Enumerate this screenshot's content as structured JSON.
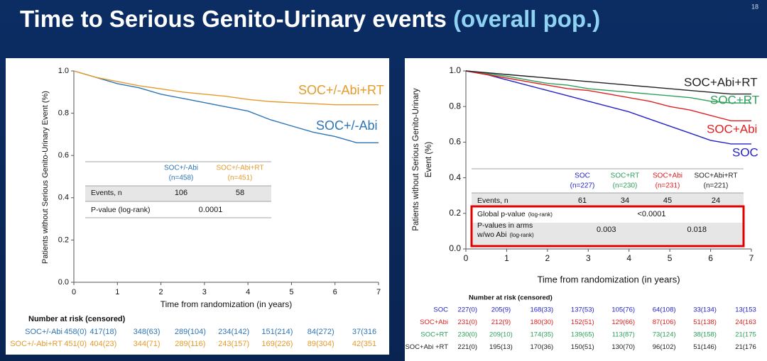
{
  "slide": {
    "title": "Time to Serious Genito-Urinary events",
    "title_highlight": "(overall pop.)",
    "page_number": 18
  },
  "chart_data": [
    {
      "type": "line",
      "x_label": "Time from randomization (in years)",
      "y_label": "Patients without Serious Genito-Urinary Event (%)",
      "x": [
        0,
        0.5,
        1,
        1.5,
        2,
        2.5,
        3,
        3.5,
        4,
        4.5,
        5,
        5.5,
        6,
        6.5,
        7
      ],
      "series": [
        {
          "name": "SOC+/-Abi",
          "color": "#2e75b6",
          "values": [
            1,
            0.97,
            0.94,
            0.92,
            0.89,
            0.87,
            0.85,
            0.83,
            0.81,
            0.77,
            0.74,
            0.71,
            0.69,
            0.66,
            0.66
          ]
        },
        {
          "name": "SOC+/-Abi+RT",
          "color": "#e59b2b",
          "values": [
            1,
            0.97,
            0.95,
            0.93,
            0.915,
            0.9,
            0.89,
            0.88,
            0.865,
            0.855,
            0.85,
            0.845,
            0.84,
            0.84,
            0.84
          ]
        }
      ],
      "xlim": [
        0,
        7
      ],
      "xticks": [
        0,
        1,
        2,
        3,
        4,
        5,
        6,
        7
      ],
      "ylim": [
        0,
        1
      ],
      "yticks": [
        {
          "value": 0,
          "label": "0.0"
        },
        0.2,
        0.4,
        0.6,
        0.8,
        {
          "value": 1,
          "label": "1.0"
        }
      ],
      "table": {
        "columns": [
          {
            "name": "SOC+/-Abi",
            "n": "(n=458)"
          },
          {
            "name": "SOC+/-Abi+RT",
            "n": "(n=451)"
          }
        ],
        "rows": [
          {
            "label": "Events, n",
            "cells": [
              106,
              58
            ]
          },
          {
            "label": "P-value (log-rank)",
            "cells": [
              "0.0001"
            ]
          }
        ]
      },
      "risk_table": {
        "title": "Number at risk (censored)",
        "rows": [
          {
            "name": "SOC+/-Abi",
            "cells": [
              "458(0)",
              "417(18)",
              "348(63)",
              "289(104)",
              "234(142)",
              "151(214)",
              "84(272)",
              "37(316"
            ]
          },
          {
            "name": "SOC+/-Abi+RT",
            "cells": [
              "451(0)",
              "404(23)",
              "344(71)",
              "289(116)",
              "243(157)",
              "169(226)",
              "89(304)",
              "42(351"
            ]
          }
        ]
      }
    },
    {
      "type": "line",
      "x_label": "Time from randomization (in years)",
      "y_label": [
        "Patients without Serious Genito-Urinary",
        "Event (%)"
      ],
      "x": [
        0,
        0.5,
        1,
        1.5,
        2,
        2.5,
        3,
        3.5,
        4,
        4.5,
        5,
        5.5,
        6,
        6.5,
        7
      ],
      "series": [
        {
          "name": "SOC",
          "color": "#2323c8",
          "values": [
            1,
            0.98,
            0.95,
            0.92,
            0.89,
            0.86,
            0.83,
            0.8,
            0.77,
            0.73,
            0.69,
            0.65,
            0.61,
            0.59,
            0.59
          ]
        },
        {
          "name": "SOC+RT",
          "color": "#2ea05a",
          "values": [
            1,
            0.985,
            0.97,
            0.95,
            0.93,
            0.92,
            0.9,
            0.89,
            0.88,
            0.87,
            0.86,
            0.85,
            0.83,
            0.82,
            0.82
          ]
        },
        {
          "name": "SOC+Abi",
          "color": "#e02020",
          "values": [
            1,
            0.98,
            0.96,
            0.94,
            0.92,
            0.9,
            0.89,
            0.87,
            0.85,
            0.83,
            0.8,
            0.78,
            0.75,
            0.72,
            0.72
          ]
        },
        {
          "name": "SOC+Abi+RT",
          "color": "#222222",
          "values": [
            1,
            0.99,
            0.98,
            0.97,
            0.96,
            0.95,
            0.94,
            0.93,
            0.92,
            0.91,
            0.9,
            0.89,
            0.88,
            0.87,
            0.87
          ]
        }
      ],
      "xlim": [
        0,
        7
      ],
      "xticks": [
        0,
        1,
        2,
        3,
        4,
        5,
        6,
        7
      ],
      "ylim": [
        0,
        1
      ],
      "yticks": [
        {
          "value": 0,
          "label": "0.0"
        },
        0.2,
        0.4,
        0.6,
        0.8,
        {
          "value": 1,
          "label": "1.0"
        }
      ],
      "table": {
        "columns": [
          {
            "name": "SOC",
            "n": "(n=227)"
          },
          {
            "name": "SOC+RT",
            "n": "(n=230)"
          },
          {
            "name": "SOC+Abi",
            "n": "(n=231)"
          },
          {
            "name": "SOC+Abi+RT",
            "n": "(n=221)"
          }
        ],
        "rows": [
          {
            "label": "Events, n",
            "cells": [
              61,
              34,
              45,
              24
            ]
          },
          {
            "label": "Global p-value",
            "note": "(log-rank)",
            "cells": [
              "<0.0001"
            ]
          },
          {
            "label": "P-values in arms",
            "label2": "w/wo Abi",
            "note": "(log-rank)",
            "cells": [
              "0.003",
              "0.018"
            ]
          }
        ]
      },
      "risk_table": {
        "title": "Number at risk (censored)",
        "rows": [
          {
            "name": "SOC",
            "cells": [
              "227(0)",
              "205(9)",
              "168(33)",
              "137(53)",
              "105(76)",
              "64(108)",
              "33(134)",
              "13(153"
            ]
          },
          {
            "name": "SOC+Abi",
            "cells": [
              "231(0)",
              "212(9)",
              "180(30)",
              "152(51)",
              "129(66)",
              "87(106)",
              "51(138)",
              "24(163"
            ]
          },
          {
            "name": "SOC+RT",
            "cells": [
              "230(0)",
              "209(10)",
              "174(35)",
              "139(65)",
              "113(87)",
              "73(124)",
              "38(158)",
              "21(175"
            ]
          },
          {
            "name": "SOC+Abi +RT",
            "cells": [
              "221(0)",
              "195(13)",
              "170(36)",
              "150(51)",
              "130(70)",
              "96(102)",
              "51(146)",
              "21(176"
            ]
          }
        ]
      }
    }
  ]
}
